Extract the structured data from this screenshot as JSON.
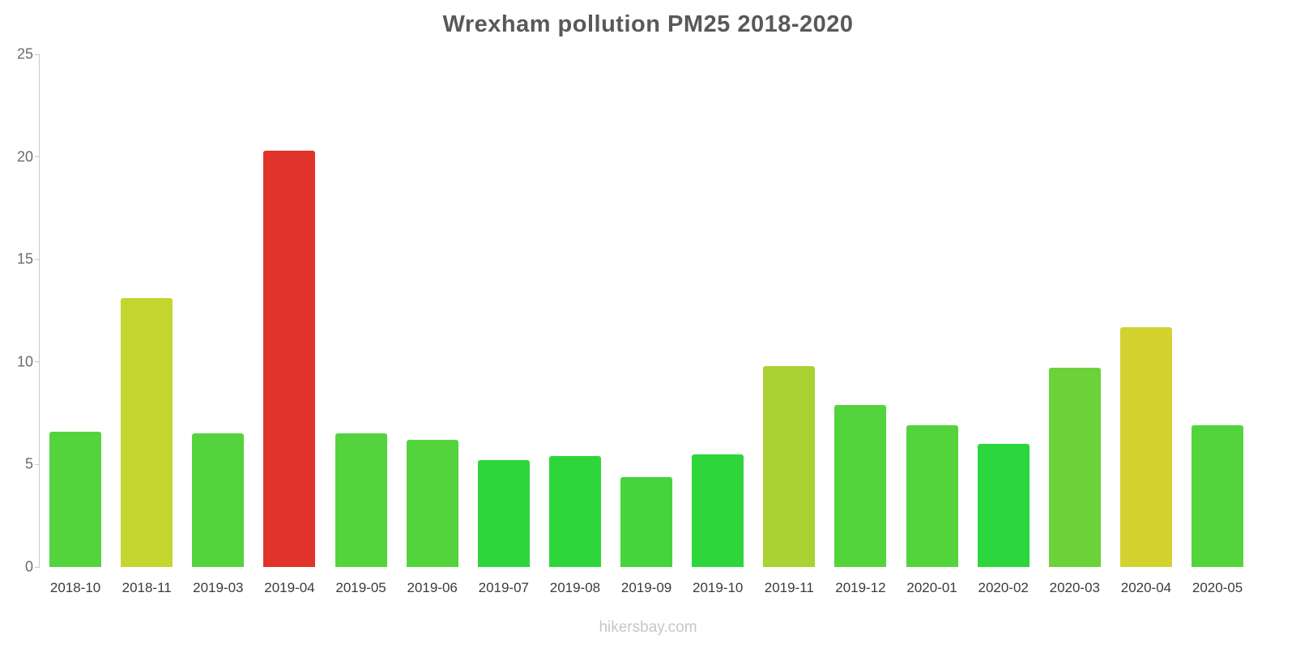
{
  "title": "Wrexham pollution PM25 2018-2020",
  "footer": "hikersbay.com",
  "chart_data": {
    "type": "bar",
    "title": "Wrexham pollution PM25 2018-2020",
    "xlabel": "",
    "ylabel": "",
    "categories": [
      "2018-10",
      "2018-11",
      "2019-03",
      "2019-04",
      "2019-05",
      "2019-06",
      "2019-07",
      "2019-08",
      "2019-09",
      "2019-10",
      "2019-11",
      "2019-12",
      "2020-01",
      "2020-02",
      "2020-03",
      "2020-04",
      "2020-05"
    ],
    "values": [
      6.6,
      13.1,
      6.5,
      20.3,
      6.5,
      6.2,
      5.2,
      5.4,
      4.4,
      5.5,
      9.8,
      7.9,
      6.9,
      6.0,
      9.7,
      11.7,
      6.9
    ],
    "bar_colors": [
      "#54d43c",
      "#c4d52f",
      "#54d43c",
      "#e0342b",
      "#54d43c",
      "#54d43c",
      "#2ed63c",
      "#2ed63c",
      "#46d43c",
      "#2ed63c",
      "#a9d232",
      "#54d43c",
      "#54d43c",
      "#2bd63f",
      "#6cd23a",
      "#d3d22e",
      "#54d43c"
    ],
    "ylim": [
      0,
      25
    ],
    "yticks": [
      0,
      5,
      10,
      15,
      20,
      25
    ],
    "grid": false,
    "legend_position": "none",
    "axis_color": "#c9c9c9"
  }
}
